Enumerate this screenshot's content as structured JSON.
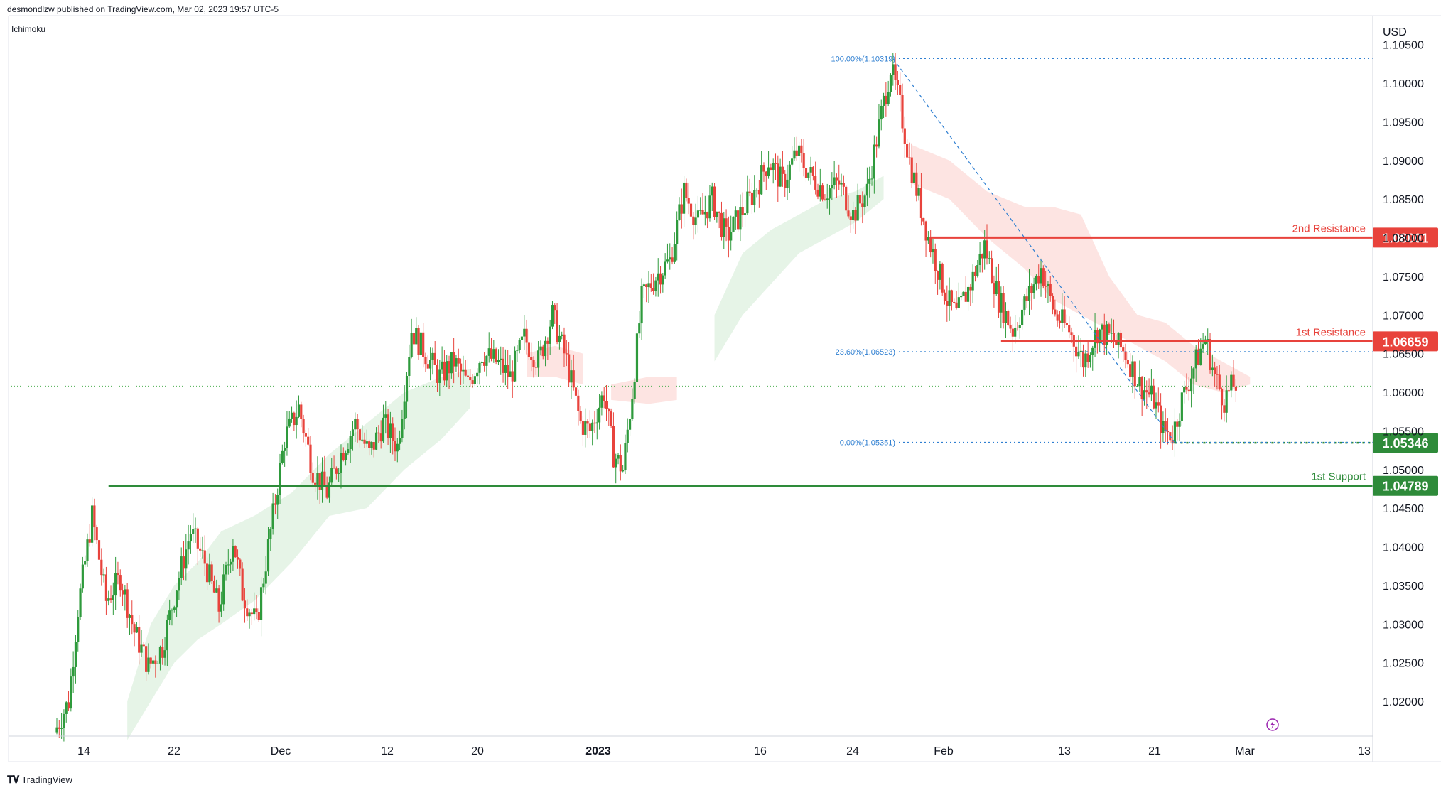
{
  "header": {
    "publisher_line": "desmondlzw published on TradingView.com, Mar 02, 2023 19:57 UTC-5",
    "indicator": "Ichimoku"
  },
  "footer": {
    "brand": "TradingView",
    "brand_icon": "tradingview-logo-icon"
  },
  "colors": {
    "up": "#26a69a",
    "down": "#ef5350",
    "up_body": "#2e9a3c",
    "down_body": "#e8433c",
    "resistance": "#e8433c",
    "support": "#2e8b3a",
    "cloud_bull": "#e6f4e7",
    "cloud_bear": "#fde4e2",
    "fib": "#2f7fd1"
  },
  "chart_data": {
    "type": "candlestick",
    "symbol_currency": "USD",
    "ylim": [
      1.0155,
      1.108
    ],
    "y_ticks": [
      "1.02000",
      "1.02500",
      "1.03000",
      "1.03500",
      "1.04000",
      "1.04500",
      "1.05000",
      "1.05500",
      "1.06000",
      "1.06500",
      "1.07000",
      "1.07500",
      "1.08000",
      "1.08500",
      "1.09000",
      "1.09500",
      "1.10000",
      "1.10500"
    ],
    "x_ticks": [
      {
        "label": "14",
        "bold": false
      },
      {
        "label": "22",
        "bold": false
      },
      {
        "label": "Dec",
        "bold": false
      },
      {
        "label": "12",
        "bold": false
      },
      {
        "label": "20",
        "bold": false
      },
      {
        "label": "2023",
        "bold": true
      },
      {
        "label": "16",
        "bold": false
      },
      {
        "label": "24",
        "bold": false
      },
      {
        "label": "Feb",
        "bold": false
      },
      {
        "label": "13",
        "bold": false
      },
      {
        "label": "21",
        "bold": false
      },
      {
        "label": "Mar",
        "bold": false
      },
      {
        "label": "13",
        "bold": false
      }
    ],
    "price_path": [
      [
        0,
        1.016
      ],
      [
        3,
        1.02
      ],
      [
        5,
        1.032
      ],
      [
        8,
        1.044
      ],
      [
        11,
        1.033
      ],
      [
        14,
        1.036
      ],
      [
        17,
        1.029
      ],
      [
        20,
        1.0245
      ],
      [
        23,
        1.027
      ],
      [
        26,
        1.035
      ],
      [
        29,
        1.042
      ],
      [
        32,
        1.038
      ],
      [
        35,
        1.032
      ],
      [
        38,
        1.041
      ],
      [
        40,
        1.034
      ],
      [
        43,
        1.03
      ],
      [
        46,
        1.042
      ],
      [
        49,
        1.054
      ],
      [
        52,
        1.058
      ],
      [
        55,
        1.05
      ],
      [
        58,
        1.047
      ],
      [
        61,
        1.052
      ],
      [
        64,
        1.056
      ],
      [
        67,
        1.052
      ],
      [
        70,
        1.056
      ],
      [
        73,
        1.053
      ],
      [
        76,
        1.068
      ],
      [
        79,
        1.065
      ],
      [
        82,
        1.062
      ],
      [
        85,
        1.064
      ],
      [
        88,
        1.061
      ],
      [
        91,
        1.065
      ],
      [
        94,
        1.064
      ],
      [
        97,
        1.062
      ],
      [
        100,
        1.067
      ],
      [
        103,
        1.064
      ],
      [
        106,
        1.07
      ],
      [
        109,
        1.064
      ],
      [
        112,
        1.056
      ],
      [
        114,
        1.055
      ],
      [
        117,
        1.06
      ],
      [
        119,
        1.052
      ],
      [
        121,
        1.05
      ],
      [
        123,
        1.06
      ],
      [
        125,
        1.072
      ],
      [
        128,
        1.075
      ],
      [
        131,
        1.077
      ],
      [
        134,
        1.086
      ],
      [
        137,
        1.082
      ],
      [
        140,
        1.085
      ],
      [
        143,
        1.08
      ],
      [
        146,
        1.083
      ],
      [
        149,
        1.086
      ],
      [
        152,
        1.09
      ],
      [
        155,
        1.087
      ],
      [
        158,
        1.091
      ],
      [
        161,
        1.088
      ],
      [
        164,
        1.086
      ],
      [
        167,
        1.087
      ],
      [
        170,
        1.083
      ],
      [
        173,
        1.086
      ],
      [
        176,
        1.096
      ],
      [
        178,
        1.102
      ],
      [
        180,
        1.097
      ],
      [
        182,
        1.09
      ],
      [
        184,
        1.085
      ],
      [
        186,
        1.08
      ],
      [
        188,
        1.076
      ],
      [
        190,
        1.072
      ],
      [
        192,
        1.07
      ],
      [
        195,
        1.074
      ],
      [
        198,
        1.079
      ],
      [
        201,
        1.072
      ],
      [
        204,
        1.068
      ],
      [
        207,
        1.072
      ],
      [
        210,
        1.076
      ],
      [
        213,
        1.07
      ],
      [
        216,
        1.068
      ],
      [
        219,
        1.064
      ],
      [
        222,
        1.068
      ],
      [
        225,
        1.067
      ],
      [
        228,
        1.065
      ],
      [
        231,
        1.061
      ],
      [
        234,
        1.059
      ],
      [
        236,
        1.055
      ],
      [
        238,
        1.0545
      ],
      [
        240,
        1.059
      ],
      [
        243,
        1.064
      ],
      [
        245,
        1.067
      ],
      [
        247,
        1.062
      ],
      [
        249,
        1.059
      ],
      [
        251,
        1.061
      ]
    ],
    "cloud": [
      {
        "sign": "bull",
        "points": [
          [
            15,
            1.015,
            1.02
          ],
          [
            20,
            1.02,
            1.03
          ],
          [
            25,
            1.025,
            1.035
          ],
          [
            30,
            1.028,
            1.038
          ],
          [
            35,
            1.03,
            1.042
          ],
          [
            42,
            1.033,
            1.044
          ],
          [
            50,
            1.038,
            1.047
          ],
          [
            58,
            1.044,
            1.052
          ],
          [
            66,
            1.045,
            1.056
          ],
          [
            74,
            1.05,
            1.06
          ],
          [
            82,
            1.054,
            1.062
          ],
          [
            88,
            1.058,
            1.063
          ]
        ]
      },
      {
        "sign": "bear",
        "points": [
          [
            100,
            1.062,
            1.065
          ],
          [
            106,
            1.062,
            1.066
          ],
          [
            112,
            1.061,
            1.065
          ]
        ]
      },
      {
        "sign": "bear",
        "points": [
          [
            118,
            1.059,
            1.061
          ],
          [
            126,
            1.0585,
            1.062
          ],
          [
            132,
            1.059,
            1.062
          ]
        ]
      },
      {
        "sign": "bull",
        "points": [
          [
            140,
            1.064,
            1.07
          ],
          [
            146,
            1.07,
            1.078
          ],
          [
            152,
            1.074,
            1.081
          ],
          [
            158,
            1.078,
            1.083
          ],
          [
            164,
            1.08,
            1.085
          ],
          [
            170,
            1.082,
            1.086
          ],
          [
            176,
            1.085,
            1.088
          ]
        ]
      },
      {
        "sign": "bear",
        "points": [
          [
            182,
            1.087,
            1.092
          ],
          [
            190,
            1.085,
            1.09
          ],
          [
            198,
            1.08,
            1.086
          ],
          [
            206,
            1.076,
            1.084
          ],
          [
            212,
            1.072,
            1.084
          ],
          [
            218,
            1.07,
            1.083
          ],
          [
            224,
            1.068,
            1.075
          ],
          [
            230,
            1.066,
            1.07
          ],
          [
            236,
            1.064,
            1.069
          ],
          [
            242,
            1.061,
            1.066
          ],
          [
            248,
            1.06,
            1.064
          ],
          [
            254,
            1.061,
            1.062
          ]
        ]
      }
    ],
    "current_price": 1.0608,
    "levels": [
      {
        "name": "2nd Resistance",
        "value": 1.08001,
        "label": "1.08001",
        "kind": "resistance",
        "x_from": 186
      },
      {
        "name": "1st Resistance",
        "value": 1.06659,
        "label": "1.06659",
        "kind": "resistance",
        "x_from": 201
      },
      {
        "name": "1st Support",
        "value": 1.04789,
        "label": "1.04789",
        "kind": "support",
        "x_from": 11
      }
    ],
    "support_zone": {
      "value": 1.05346,
      "label": "1.05346"
    },
    "fibonacci": [
      {
        "label": "100.00%(1.10319)",
        "value": 1.10319
      },
      {
        "label": "23.60%(1.06523)",
        "value": 1.06523
      },
      {
        "label": "0.00%(1.05351)",
        "value": 1.05351
      }
    ],
    "fib_trend": {
      "from": [
        178,
        1.10319
      ],
      "to": [
        238,
        1.05351
      ]
    },
    "fib_x_from": 180,
    "x_domain": [
      0,
      270
    ]
  }
}
